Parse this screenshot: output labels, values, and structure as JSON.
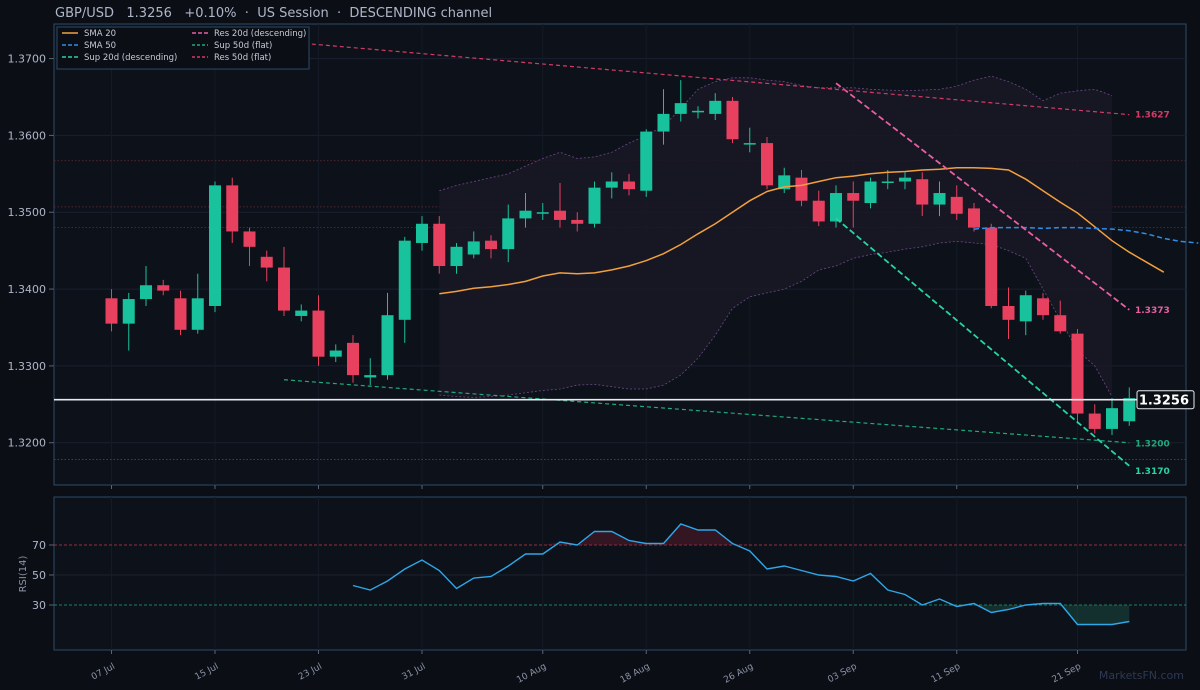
{
  "header": {
    "symbol": "GBP/USD",
    "price": "1.3256",
    "change": "+0.10%",
    "session": "US Session",
    "channel": "DESCENDING channel",
    "sep": "·"
  },
  "watermark": "MarketsFN.com",
  "chart_data": [
    {
      "type": "candlestick",
      "x_ticks": [
        "07 Jul",
        "15 Jul",
        "23 Jul",
        "31 Jul",
        "10 Aug",
        "18 Aug",
        "26 Aug",
        "03 Sep",
        "11 Sep",
        "21 Sep"
      ],
      "ylim": [
        1.3145,
        1.3745
      ],
      "y_ticks": [
        "1.3200",
        "1.3300",
        "1.3400",
        "1.3500",
        "1.3600",
        "1.3700"
      ],
      "candles": [
        [
          1.3388,
          1.34,
          1.3345,
          1.3355
        ],
        [
          1.3355,
          1.3395,
          1.332,
          1.3387
        ],
        [
          1.3387,
          1.343,
          1.3378,
          1.3405
        ],
        [
          1.3405,
          1.3412,
          1.3392,
          1.3398
        ],
        [
          1.3388,
          1.3398,
          1.334,
          1.3347
        ],
        [
          1.3347,
          1.342,
          1.3342,
          1.3388
        ],
        [
          1.3378,
          1.354,
          1.337,
          1.3535
        ],
        [
          1.3535,
          1.3545,
          1.346,
          1.3475
        ],
        [
          1.3475,
          1.348,
          1.343,
          1.3455
        ],
        [
          1.3442,
          1.345,
          1.341,
          1.3428
        ],
        [
          1.3428,
          1.3455,
          1.3365,
          1.3372
        ],
        [
          1.3365,
          1.338,
          1.3358,
          1.3372
        ],
        [
          1.3372,
          1.3392,
          1.33,
          1.3312
        ],
        [
          1.3312,
          1.3328,
          1.3305,
          1.332
        ],
        [
          1.333,
          1.334,
          1.3278,
          1.3288
        ],
        [
          1.3285,
          1.331,
          1.3275,
          1.3288
        ],
        [
          1.3288,
          1.3395,
          1.3282,
          1.3366
        ],
        [
          1.336,
          1.3468,
          1.333,
          1.3463
        ],
        [
          1.346,
          1.3495,
          1.345,
          1.3485
        ],
        [
          1.3485,
          1.3495,
          1.342,
          1.343
        ],
        [
          1.343,
          1.346,
          1.342,
          1.3455
        ],
        [
          1.3445,
          1.3475,
          1.344,
          1.3462
        ],
        [
          1.3463,
          1.347,
          1.344,
          1.3452
        ],
        [
          1.3452,
          1.351,
          1.3435,
          1.3492
        ],
        [
          1.3492,
          1.3525,
          1.348,
          1.3502
        ],
        [
          1.3498,
          1.3512,
          1.349,
          1.35
        ],
        [
          1.3502,
          1.3538,
          1.348,
          1.349
        ],
        [
          1.349,
          1.35,
          1.3475,
          1.3485
        ],
        [
          1.3485,
          1.354,
          1.348,
          1.3532
        ],
        [
          1.3532,
          1.3552,
          1.3518,
          1.354
        ],
        [
          1.354,
          1.355,
          1.3522,
          1.353
        ],
        [
          1.3528,
          1.3608,
          1.352,
          1.3605
        ],
        [
          1.3605,
          1.366,
          1.3588,
          1.3628
        ],
        [
          1.3628,
          1.3672,
          1.3618,
          1.3642
        ],
        [
          1.363,
          1.3638,
          1.3622,
          1.3632
        ],
        [
          1.3628,
          1.3655,
          1.362,
          1.3645
        ],
        [
          1.3645,
          1.365,
          1.359,
          1.3595
        ],
        [
          1.359,
          1.361,
          1.3578,
          1.359
        ],
        [
          1.359,
          1.3598,
          1.353,
          1.3535
        ],
        [
          1.353,
          1.3558,
          1.3525,
          1.3548
        ],
        [
          1.3545,
          1.3555,
          1.3508,
          1.3515
        ],
        [
          1.3515,
          1.3528,
          1.3482,
          1.3488
        ],
        [
          1.3488,
          1.3535,
          1.348,
          1.3525
        ],
        [
          1.3525,
          1.354,
          1.348,
          1.3515
        ],
        [
          1.3512,
          1.3545,
          1.3505,
          1.354
        ],
        [
          1.354,
          1.3555,
          1.353,
          1.354
        ],
        [
          1.354,
          1.3552,
          1.353,
          1.3545
        ],
        [
          1.3543,
          1.3552,
          1.3495,
          1.351
        ],
        [
          1.351,
          1.354,
          1.3495,
          1.3525
        ],
        [
          1.352,
          1.3535,
          1.349,
          1.3498
        ],
        [
          1.3505,
          1.3512,
          1.3475,
          1.348
        ],
        [
          1.348,
          1.3485,
          1.3375,
          1.3378
        ],
        [
          1.3378,
          1.3402,
          1.3335,
          1.336
        ],
        [
          1.3358,
          1.3398,
          1.334,
          1.3392
        ],
        [
          1.3388,
          1.3395,
          1.336,
          1.3366
        ],
        [
          1.3366,
          1.3385,
          1.3342,
          1.3345
        ],
        [
          1.3342,
          1.3348,
          1.3225,
          1.3238
        ],
        [
          1.3238,
          1.325,
          1.3212,
          1.3218
        ],
        [
          1.3218,
          1.3258,
          1.321,
          1.3245
        ],
        [
          1.3228,
          1.3272,
          1.3222,
          1.3258
        ]
      ],
      "sma20": {
        "name": "SMA 20",
        "values": [
          1.3394,
          1.3397,
          1.3401,
          1.3403,
          1.3406,
          1.341,
          1.3417,
          1.3421,
          1.342,
          1.3421,
          1.3425,
          1.343,
          1.3437,
          1.3446,
          1.3458,
          1.3472,
          1.3485,
          1.35,
          1.3515,
          1.3527,
          1.3533,
          1.3535,
          1.354,
          1.3545,
          1.3547,
          1.355,
          1.3552,
          1.3553,
          1.3555,
          1.3556,
          1.3558,
          1.3558,
          1.3557,
          1.3555,
          1.3543,
          1.3528,
          1.3513,
          1.3499,
          1.3481,
          1.3463,
          1.3448,
          1.3435,
          1.3422
        ]
      },
      "sma50": {
        "name": "SMA 50",
        "values": [
          1.3478,
          1.348,
          1.348,
          1.348,
          1.3479,
          1.348,
          1.348,
          1.3479,
          1.3478,
          1.3476,
          1.3472,
          1.3466,
          1.3462,
          1.346
        ]
      },
      "bollinger": {
        "upper": [
          1.3528,
          1.3535,
          1.354,
          1.3545,
          1.355,
          1.356,
          1.357,
          1.3578,
          1.357,
          1.3572,
          1.3578,
          1.359,
          1.36,
          1.3612,
          1.3635,
          1.366,
          1.367,
          1.3675,
          1.3675,
          1.3672,
          1.367,
          1.3665,
          1.3662,
          1.3662,
          1.3662,
          1.366,
          1.3659,
          1.3658,
          1.3659,
          1.366,
          1.3664,
          1.3672,
          1.3677,
          1.367,
          1.366,
          1.3645,
          1.3655,
          1.3658,
          1.366,
          1.3652
        ],
        "lower": [
          1.3262,
          1.326,
          1.3259,
          1.326,
          1.3262,
          1.3265,
          1.3268,
          1.327,
          1.3275,
          1.3276,
          1.3273,
          1.327,
          1.327,
          1.3275,
          1.3288,
          1.331,
          1.334,
          1.3375,
          1.339,
          1.3395,
          1.34,
          1.341,
          1.3425,
          1.343,
          1.344,
          1.3445,
          1.3448,
          1.3452,
          1.3455,
          1.346,
          1.3462,
          1.346,
          1.3458,
          1.345,
          1.344,
          1.34,
          1.336,
          1.332,
          1.33,
          1.326
        ]
      },
      "levels": [
        {
          "name": "Res 20d (descending)",
          "label": "1.3373",
          "color": "#e85fa4",
          "start": [
            42,
            1.3668
          ],
          "end": [
            59,
            1.3373
          ]
        },
        {
          "name": "Sup 20d (descending)",
          "label": "1.3170",
          "color": "#27d4a2",
          "start": [
            42,
            1.3492
          ],
          "end": [
            59,
            1.317
          ]
        },
        {
          "name": "Sup 50d (flat)",
          "label": "1.3200",
          "color": "#1fa97c",
          "start": [
            10,
            1.3282
          ],
          "end": [
            59,
            1.32
          ]
        },
        {
          "name": "Res 50d (flat)",
          "label": "1.3627",
          "color": "#d43a66",
          "start": [
            10,
            1.3722
          ],
          "end": [
            59,
            1.3627
          ]
        }
      ],
      "price_line": {
        "value": 1.3256,
        "label": "1.3256"
      },
      "grid_levels": [
        1.3567,
        1.3507,
        1.348,
        1.3178
      ],
      "legend_placement": "top-left"
    },
    {
      "type": "line",
      "ylabel": "RSI(14)",
      "ylim": [
        0,
        100
      ],
      "y_ticks": [
        "30",
        "50",
        "70"
      ],
      "overbought": 70,
      "oversold": 30,
      "series": [
        {
          "name": "RSI(14)",
          "values": [
            43,
            40,
            46,
            54,
            60,
            53,
            41,
            48,
            49,
            56,
            64,
            64,
            72,
            70,
            79,
            79,
            73,
            71,
            71,
            84,
            80,
            80,
            71,
            66,
            54,
            56,
            53,
            50,
            49,
            46,
            51,
            40,
            37,
            30,
            34,
            29,
            31,
            25,
            27,
            30,
            31,
            31,
            17,
            17,
            17,
            19
          ]
        }
      ]
    }
  ]
}
